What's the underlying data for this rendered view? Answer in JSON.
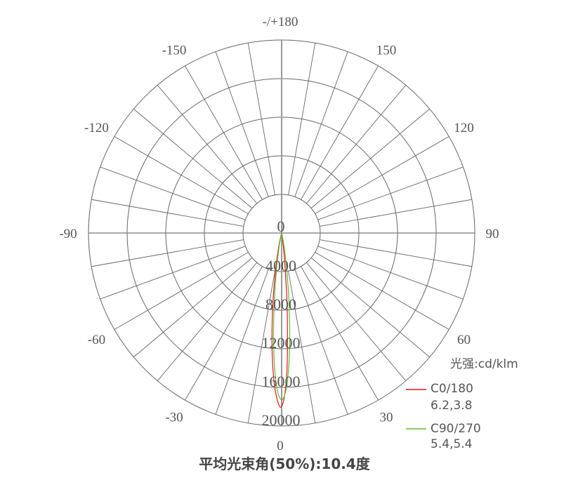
{
  "chart_data": {
    "type": "polar",
    "title": "平均光束角(50%):10.4度",
    "unit_label": "光强:cd/klm",
    "radial_range": [
      0,
      20000
    ],
    "radial_ticks": [
      "0",
      "4000",
      "8000",
      "12000",
      "16000",
      "20000"
    ],
    "radial_tick_values": [
      0,
      4000,
      8000,
      12000,
      16000,
      20000
    ],
    "angle_ticks": [
      {
        "value": 0,
        "label": "0"
      },
      {
        "value": 30,
        "label": "30"
      },
      {
        "value": 60,
        "label": "60"
      },
      {
        "value": 90,
        "label": "90"
      },
      {
        "value": 120,
        "label": "120"
      },
      {
        "value": 150,
        "label": "150"
      },
      {
        "value": 180,
        "label": "-/+180"
      },
      {
        "value": -150,
        "label": "-150"
      },
      {
        "value": -120,
        "label": "-120"
      },
      {
        "value": -90,
        "label": "-90"
      },
      {
        "value": -60,
        "label": "-60"
      },
      {
        "value": -30,
        "label": "-30"
      }
    ],
    "spoke_step_deg": 10,
    "grid": true,
    "legend_position": "bottom-right",
    "angles": [
      -16,
      -14,
      -12,
      -10,
      -8,
      -6,
      -4,
      -2,
      0,
      2,
      4,
      6,
      8,
      10,
      12,
      14,
      16
    ],
    "series": [
      {
        "name": "C0/180",
        "beam": "6.2,3.8",
        "color": "#e8141e",
        "values": [
          180,
          530,
          1340,
          2970,
          5680,
          9400,
          13480,
          16740,
          18000,
          14860,
          8350,
          3200,
          830,
          150,
          0,
          0,
          0
        ]
      },
      {
        "name": "C90/270",
        "beam": "5.4,5.4",
        "color": "#5cbf2a",
        "values": [
          0,
          160,
          560,
          1610,
          3780,
          7350,
          11830,
          15730,
          17300,
          15730,
          11830,
          7350,
          3780,
          1610,
          560,
          160,
          0
        ]
      }
    ]
  }
}
